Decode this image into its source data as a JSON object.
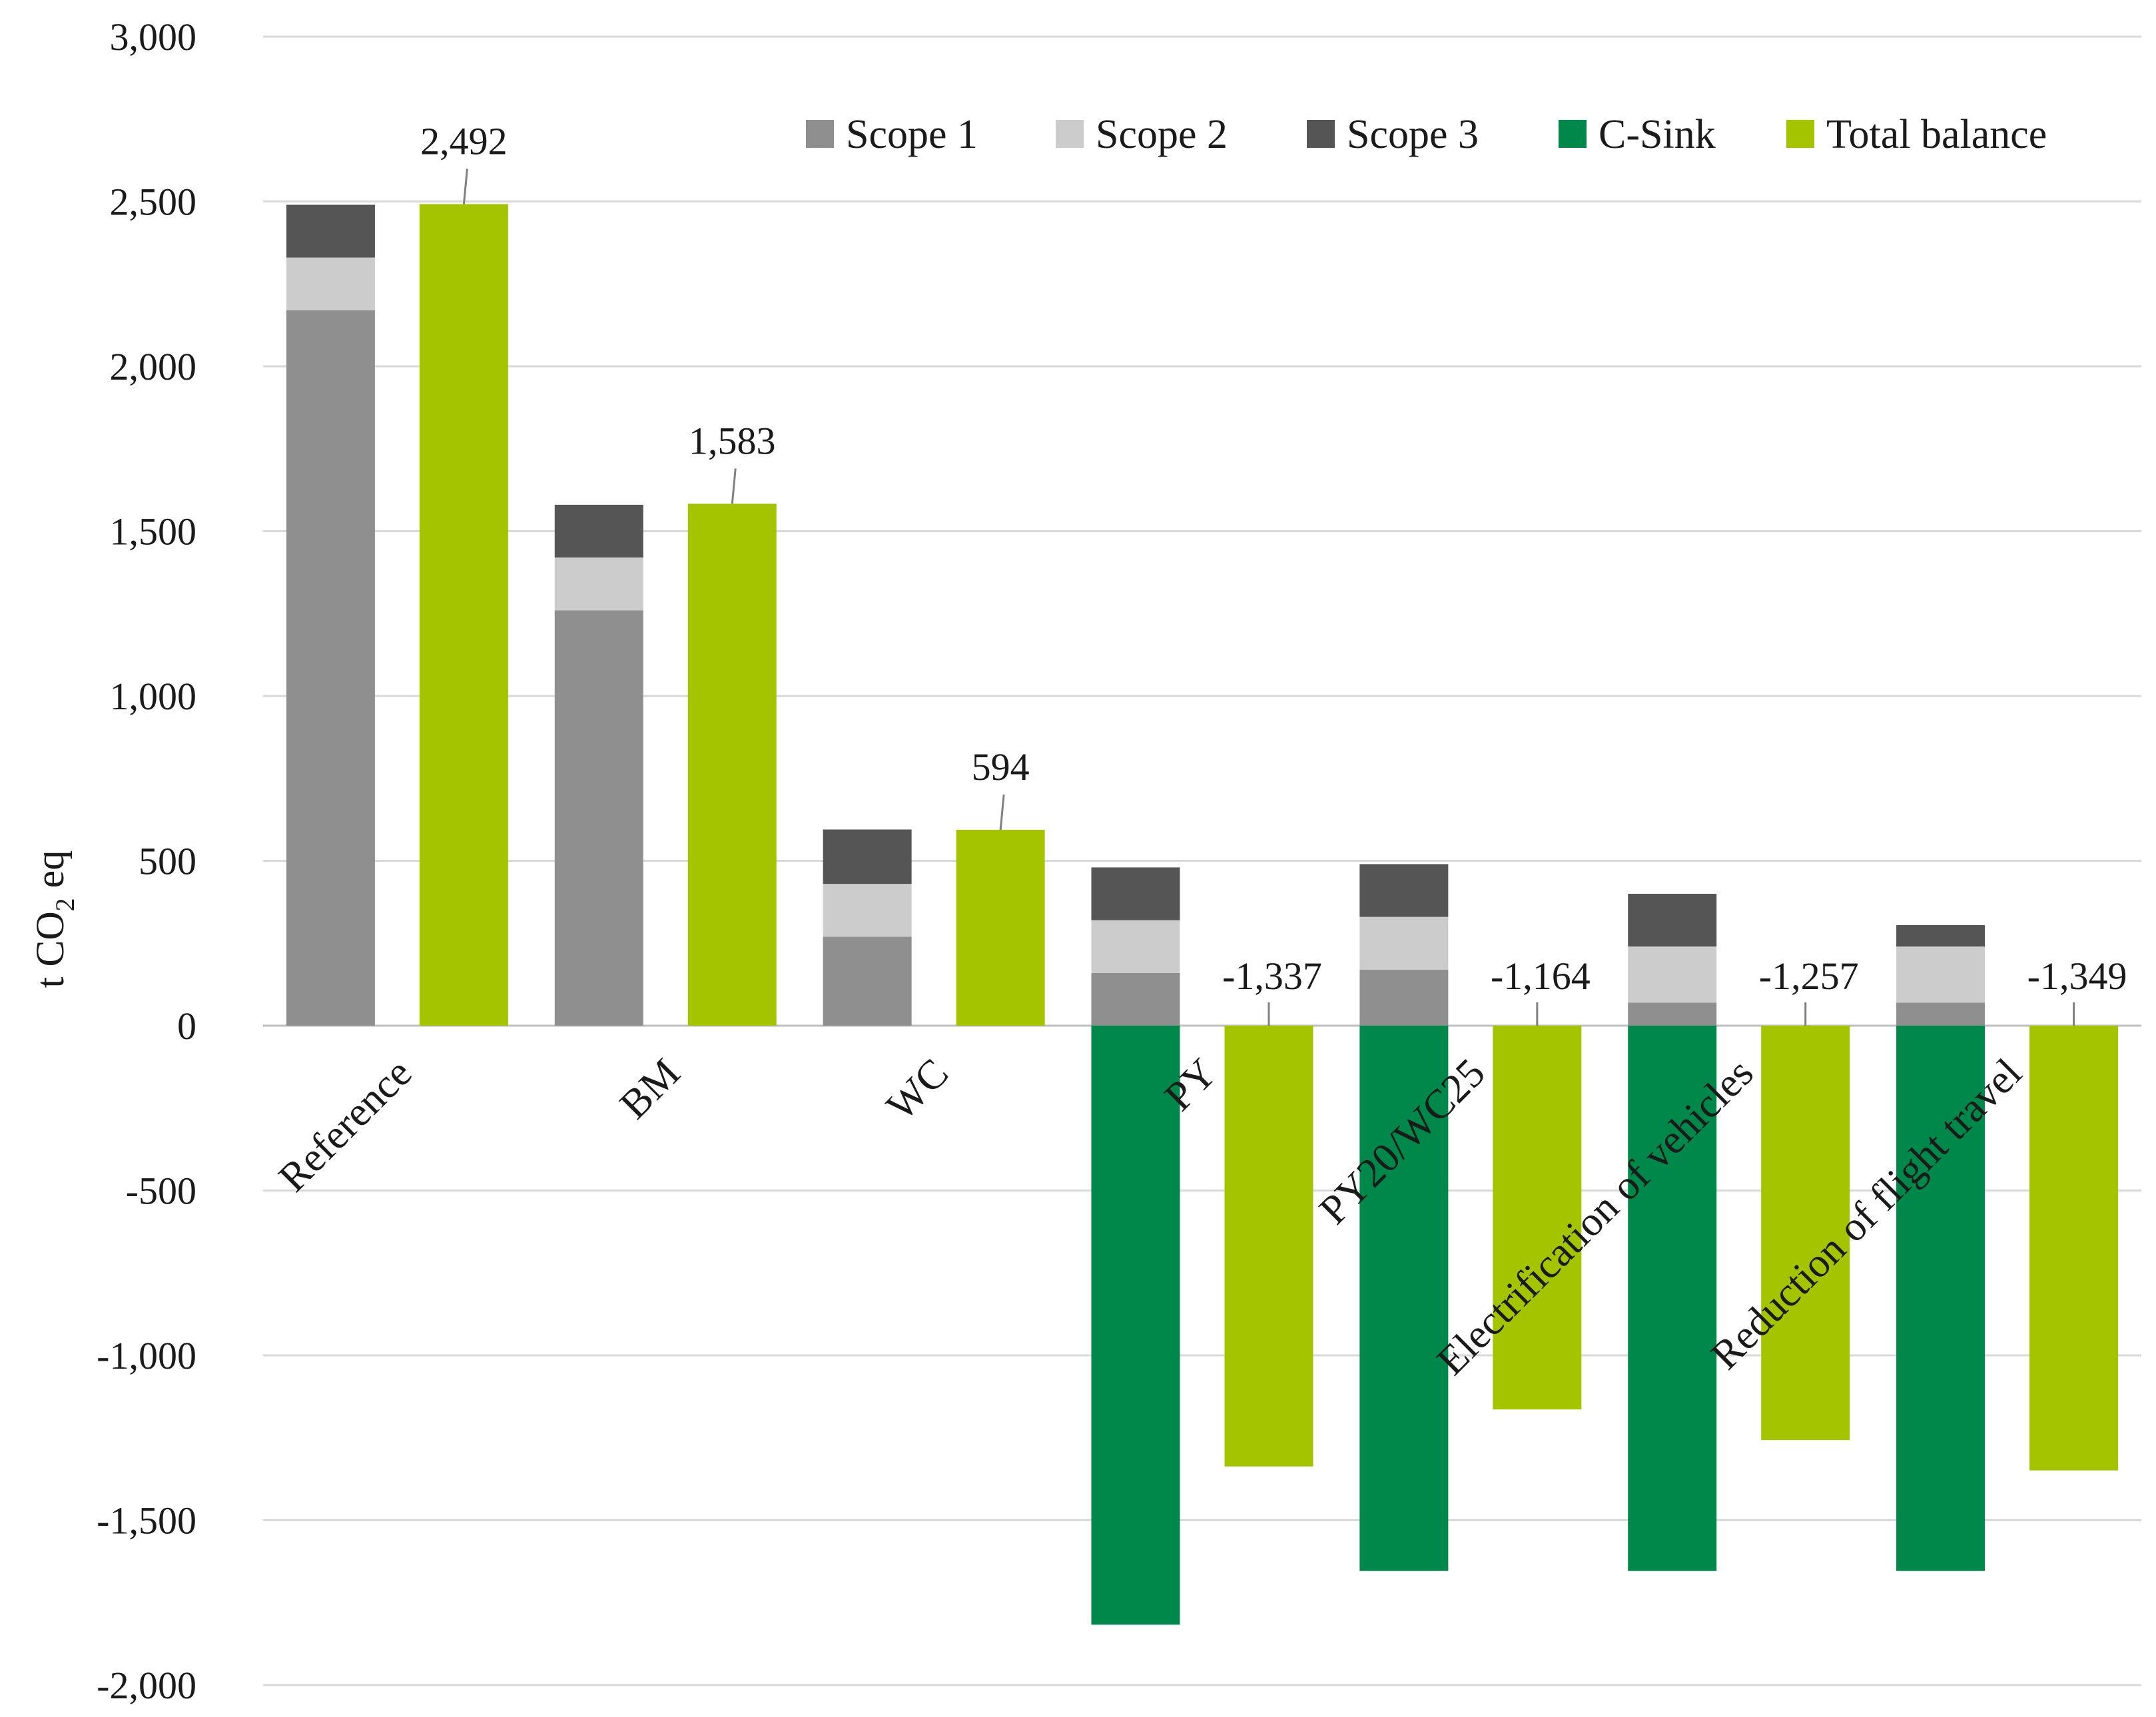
{
  "chart_data": {
    "type": "bar",
    "categories": [
      "Reference",
      "BM",
      "WC",
      "PY",
      "PY20/WC25",
      "Electrification of vehicles",
      "Reduction of flight travel"
    ],
    "series": [
      {
        "name": "Scope 1",
        "stack": "emissions",
        "values": [
          2170,
          1260,
          270,
          160,
          170,
          70,
          70
        ]
      },
      {
        "name": "Scope 2",
        "stack": "emissions",
        "values": [
          160,
          160,
          160,
          160,
          160,
          170,
          170
        ]
      },
      {
        "name": "Scope 3",
        "stack": "emissions",
        "values": [
          160,
          160,
          165,
          160,
          160,
          160,
          65
        ]
      },
      {
        "name": "C-Sink",
        "stack": "emissions",
        "values": [
          0,
          0,
          0,
          -1817,
          -1654,
          -1654,
          -1654
        ]
      },
      {
        "name": "Total balance",
        "stack": "balance",
        "values": [
          2492,
          1583,
          594,
          -1337,
          -1164,
          -1257,
          -1349
        ]
      }
    ],
    "data_labels": [
      "2,492",
      "1,583",
      "594",
      "-1,337",
      "-1,164",
      "-1,257",
      "-1,349"
    ],
    "ylabel_main": "t CO",
    "ylabel_sub": "2",
    "ylabel_suffix": " eq",
    "ylim": [
      -2000,
      3000
    ],
    "yticks": [
      -2000,
      -1500,
      -1000,
      -500,
      0,
      500,
      1000,
      1500,
      2000,
      2500,
      3000
    ],
    "ytick_labels": [
      "-2,000",
      "-1,500",
      "-1,000",
      "-500",
      "0",
      "500",
      "1,000",
      "1,500",
      "2,000",
      "2,500",
      "3,000"
    ],
    "grid": true,
    "legend_position": "top-right"
  },
  "colors": {
    "Scope 1": "#8f8f8f",
    "Scope 2": "#cccccc",
    "Scope 3": "#555555",
    "C-Sink": "#00884a",
    "Total balance": "#a5c400"
  }
}
